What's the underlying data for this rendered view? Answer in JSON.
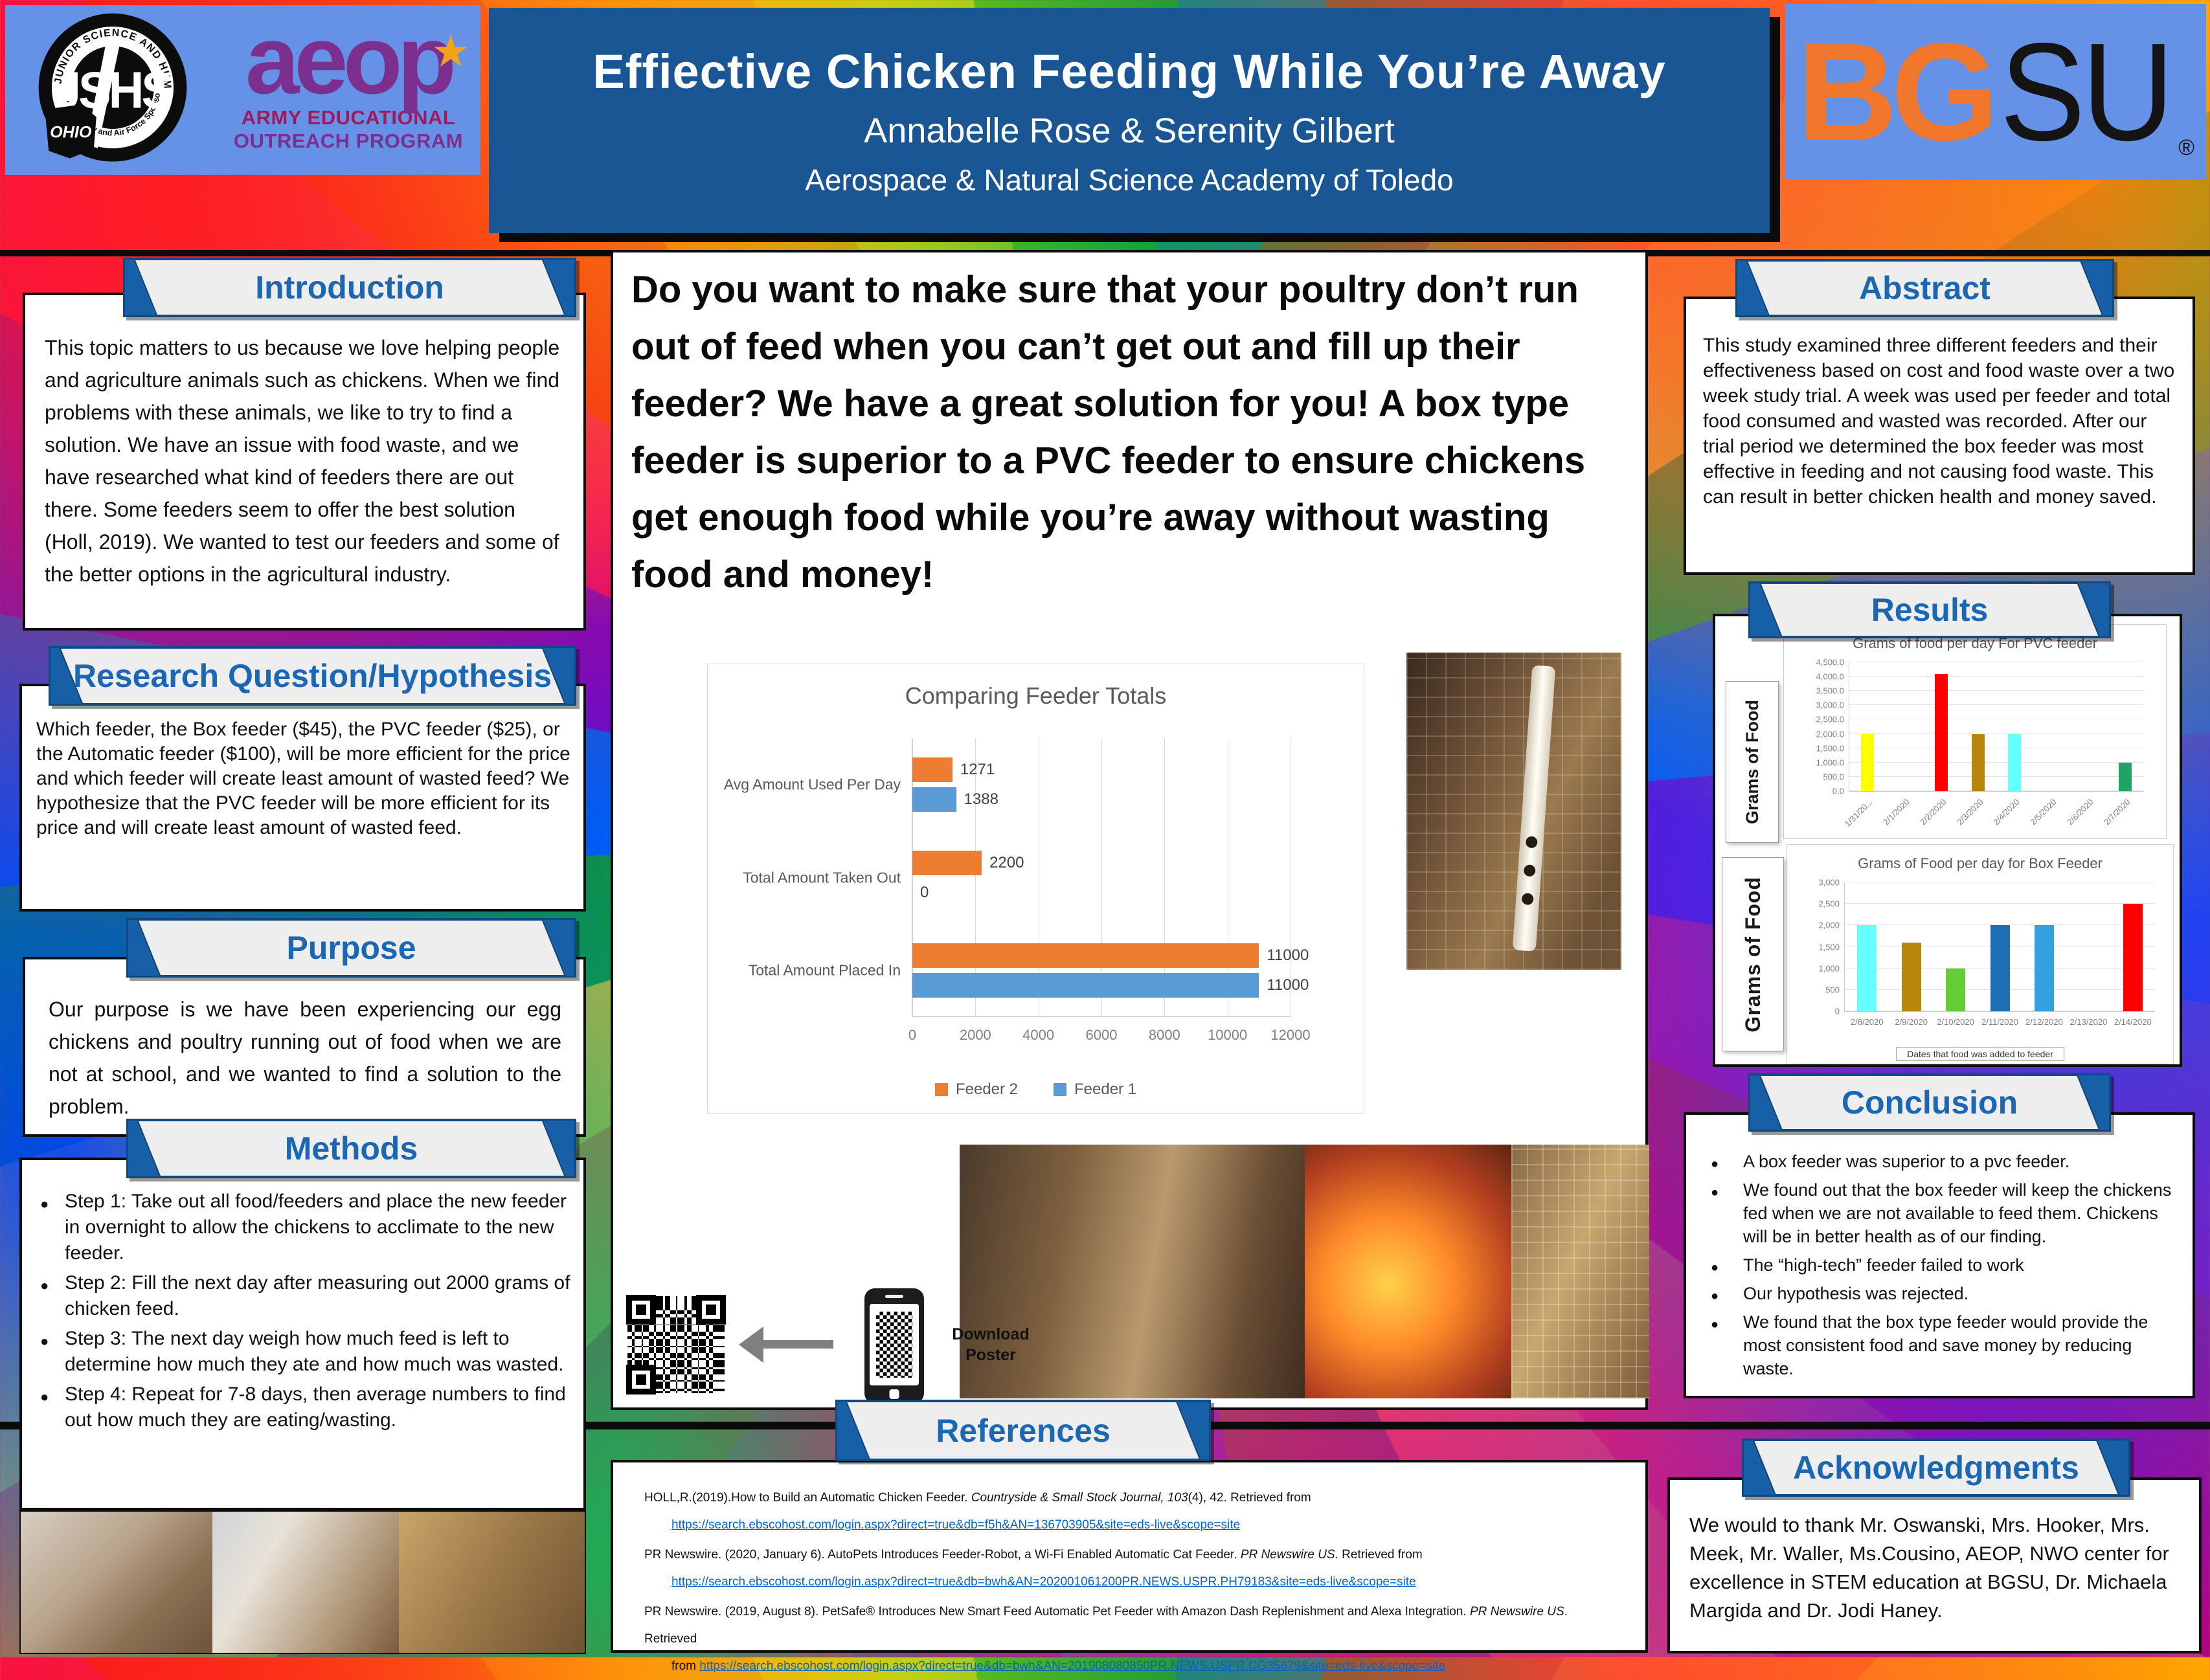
{
  "poster": {
    "title": "Effiective Chicken Feeding While You’re Away",
    "authors": "Annabelle Rose & Serenity Gilbert",
    "school": "Aerospace & Natural Science Academy of Toledo"
  },
  "logos": {
    "jshs": {
      "ring_top": "JUNIOR SCIENCE AND HUMANITIES SYMPOSIUM",
      "ring_bottom": "Army, Navy and Air Force Sponsored",
      "center": "JSHS",
      "state": "OHIO"
    },
    "aeop": {
      "word": "aeop",
      "star": "★",
      "line1": "ARMY EDUCATIONAL",
      "line2": "OUTREACH PROGRAM"
    },
    "bgsu": {
      "bg": "BG",
      "su": "SU",
      "reg": "®"
    }
  },
  "sections": {
    "introduction": {
      "title": "Introduction",
      "body": "This topic matters to us because we love helping people and agriculture animals such as chickens. When we find problems with these animals, we like to try to find a solution.  We have an issue with food waste, and we have researched what kind of feeders there are out there. Some feeders seem to offer the best solution (Holl, 2019). We wanted to test our feeders and some of the better options in the agricultural industry."
    },
    "research_question": {
      "title": "Research Question/Hypothesis",
      "body": "Which feeder, the Box feeder ($45), the PVC feeder ($25), or the Automatic feeder ($100), will be more efficient for the price and which feeder will create least amount of wasted feed? We hypothesize that the PVC feeder will be more efficient for its price and will create least amount of wasted feed."
    },
    "purpose": {
      "title": "Purpose",
      "body": "Our purpose is we have been experiencing our egg chickens and poultry running out of food when we are not at school, and we wanted to find a solution to the problem."
    },
    "methods": {
      "title": "Methods",
      "bullets": [
        "Step 1: Take out all food/feeders and place the new feeder in overnight to allow the chickens to acclimate to the new feeder.",
        "Step 2: Fill the next day after measuring out 2000 grams of chicken feed.",
        "Step 3: The next day weigh how much feed is left to determine how much they ate and how much was wasted.",
        "Step 4: Repeat for 7-8 days, then average numbers to find out how much they are eating/wasting."
      ]
    },
    "abstract": {
      "title": "Abstract",
      "body": "This study examined three different feeders and their effectiveness based on cost and food waste over a two week study trial. A week was used per feeder and total food consumed and wasted was recorded. After our trial period we determined the box feeder was most effective in feeding and not causing food waste.  This can result in better chicken health and money saved."
    },
    "results": {
      "title": "Results"
    },
    "conclusion": {
      "title": "Conclusion",
      "bullets": [
        "A box feeder was superior to a pvc feeder.",
        "We found out that the box feeder will keep the chickens fed when we are not available to feed them. Chickens will be in better health as of our finding.",
        "The “high-tech” feeder failed to work",
        "Our hypothesis was rejected.",
        "We found that the box type feeder would provide the most consistent food and save money by reducing waste."
      ]
    },
    "acknowledgments": {
      "title": "Acknowledgments",
      "body": "We would to thank Mr. Oswanski, Mrs. Hooker, Mrs. Meek, Mr. Waller, Ms.Cousino, AEOP, NWO center for excellence in STEM education at BGSU, Dr. Michaela Margida and Dr. Jodi Haney."
    },
    "references": {
      "title": "References",
      "entries": [
        {
          "prefix": "HOLL,R.(2019).How to Build an Automatic Chicken Feeder. ",
          "italic": "Countryside & Small Stock Journal, 103",
          "suffix": "(4), 42. Retrieved from",
          "url_prefix": "",
          "url": "https://search.ebscohost.com/login.aspx?direct=true&db=f5h&AN=136703905&site=eds-live&scope=site"
        },
        {
          "prefix": "PR Newswire. (2020, January 6). AutoPets Introduces Feeder-Robot, a Wi-Fi Enabled Automatic Cat Feeder. ",
          "italic": "PR Newswire US",
          "suffix": ". Retrieved from",
          "url_prefix": "",
          "url": "https://search.ebscohost.com/login.aspx?direct=true&db=bwh&AN=202001061200PR.NEWS.USPR.PH79183&site=eds-live&scope=site"
        },
        {
          "prefix": "PR Newswire. (2019, August 8). PetSafe® Introduces New Smart Feed Automatic Pet Feeder with Amazon Dash Replenishment and Alexa Integration. ",
          "italic": "PR Newswire US",
          "suffix": ". Retrieved",
          "url_prefix": "from ",
          "url": "https://search.ebscohost.com/login.aspx?direct=true&db=bwh&AN=201908080850PR.NEWS.USPR.CG35679&site=eds-live&scope=site"
        }
      ]
    }
  },
  "center": {
    "pitch": "Do you want to make sure that your poultry don’t run out of feed when you can’t get out and fill up their feeder? We have a great solution for you! A box type feeder is superior to a PVC feeder to ensure chickens get enough food while you’re away without wasting food and money!",
    "download_line1": "Download",
    "download_line2": "Poster"
  },
  "colors": {
    "accent_blue": "#1760A8",
    "title_bg": "#1A5694",
    "feeder2_orange": "#ED7D31",
    "feeder1_blue": "#5B9BD5",
    "bgsu_orange": "#F0772B",
    "aeop_purple": "#7b2f8f"
  },
  "chart_data": [
    {
      "type": "bar",
      "orientation": "horizontal",
      "title": "Comparing Feeder Totals",
      "categories": [
        "Avg Amount Used Per Day",
        "Total Amount Taken Out",
        "Total Amount Placed In"
      ],
      "series": [
        {
          "name": "Feeder 2",
          "color": "#ED7D31",
          "values": [
            1271,
            2200,
            11000
          ]
        },
        {
          "name": "Feeder 1",
          "color": "#5B9BD5",
          "values": [
            1388,
            0,
            11000
          ]
        }
      ],
      "xlim": [
        0,
        12000
      ],
      "xticks": [
        "0",
        "2000",
        "4000",
        "6000",
        "8000",
        "10000",
        "12000"
      ],
      "grid": true,
      "legend_position": "bottom",
      "data_labels": true
    },
    {
      "type": "bar",
      "orientation": "vertical",
      "title": "Grams of food per day For PVC feeder",
      "ylabel": "Grams of Food",
      "categories": [
        "1/31/20...",
        "2/1/2020",
        "2/2/2020",
        "2/3/2020",
        "2/4/2020",
        "2/5/2020",
        "2/6/2020",
        "2/7/2020"
      ],
      "values": [
        2000,
        0,
        4100,
        2000,
        2000,
        0,
        0,
        1000
      ],
      "colors": [
        "#FFFF00",
        "#FFFF00",
        "#FF0000",
        "#B8860B",
        "#66FFFF",
        "#CCCCCC",
        "#CCCCCC",
        "#21A366"
      ],
      "ylim": [
        0,
        4500
      ],
      "yticks": [
        "0.0",
        "500.0",
        "1,000.0",
        "1,500.0",
        "2,000.0",
        "2,500.0",
        "3,000.0",
        "3,500.0",
        "4,000.0",
        "4,500.0"
      ],
      "rotate_xlabels": true,
      "grid": true
    },
    {
      "type": "bar",
      "orientation": "vertical",
      "title": "Grams of Food per day for Box Feeder",
      "ylabel": "Grams of Food",
      "xlabel": "Dates that food was added to feeder",
      "categories": [
        "2/8/2020",
        "2/9/2020",
        "2/10/2020",
        "2/11/2020",
        "2/12/2020",
        "2/13/2020",
        "2/14/2020"
      ],
      "values": [
        2000,
        1600,
        1000,
        2000,
        2000,
        0,
        2500
      ],
      "colors": [
        "#66FFFF",
        "#B8860B",
        "#66CC33",
        "#1F6FB5",
        "#33A1DE",
        "#CCCCCC",
        "#FF0000"
      ],
      "ylim": [
        0,
        3000
      ],
      "yticks": [
        "0",
        "500",
        "1,000",
        "1,500",
        "2,000",
        "2,500",
        "3,000"
      ],
      "rotate_xlabels": false,
      "grid": true
    }
  ]
}
